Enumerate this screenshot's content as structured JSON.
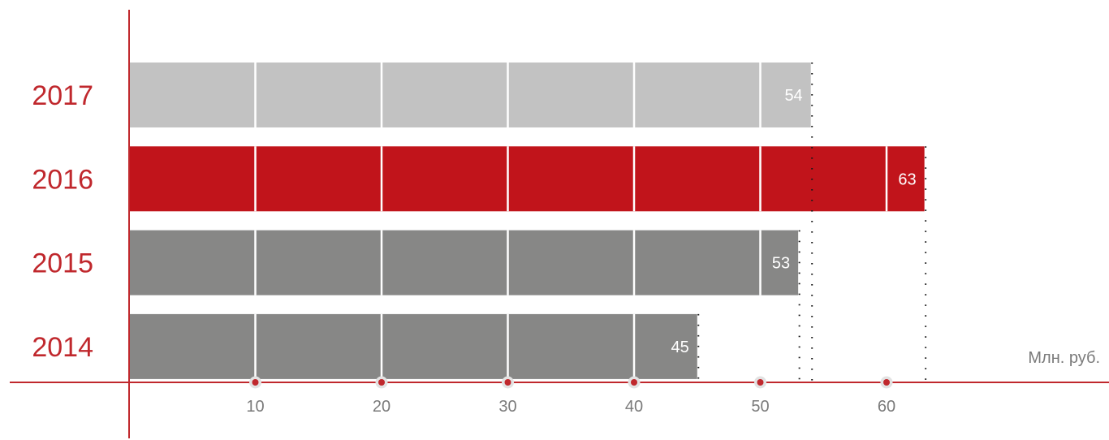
{
  "chart_data": {
    "type": "bar",
    "orientation": "horizontal",
    "categories": [
      "2017",
      "2016",
      "2015",
      "2014"
    ],
    "values": [
      54,
      63,
      53,
      45
    ],
    "value_labels": [
      "54",
      "63",
      "53",
      "45"
    ],
    "bar_colors": [
      "#c2c2c2",
      "#c1141b",
      "#878786",
      "#878786"
    ],
    "x_ticks": [
      10,
      20,
      30,
      40,
      50,
      60
    ],
    "x_tick_labels": [
      "10",
      "20",
      "30",
      "40",
      "50",
      "60"
    ],
    "xlim": [
      0,
      70
    ],
    "unit_label": "Млн. руб.",
    "grid": true,
    "axis_color": "#c0282d",
    "label_color": "#c0282d",
    "tick_color": "#7a7a7a"
  }
}
